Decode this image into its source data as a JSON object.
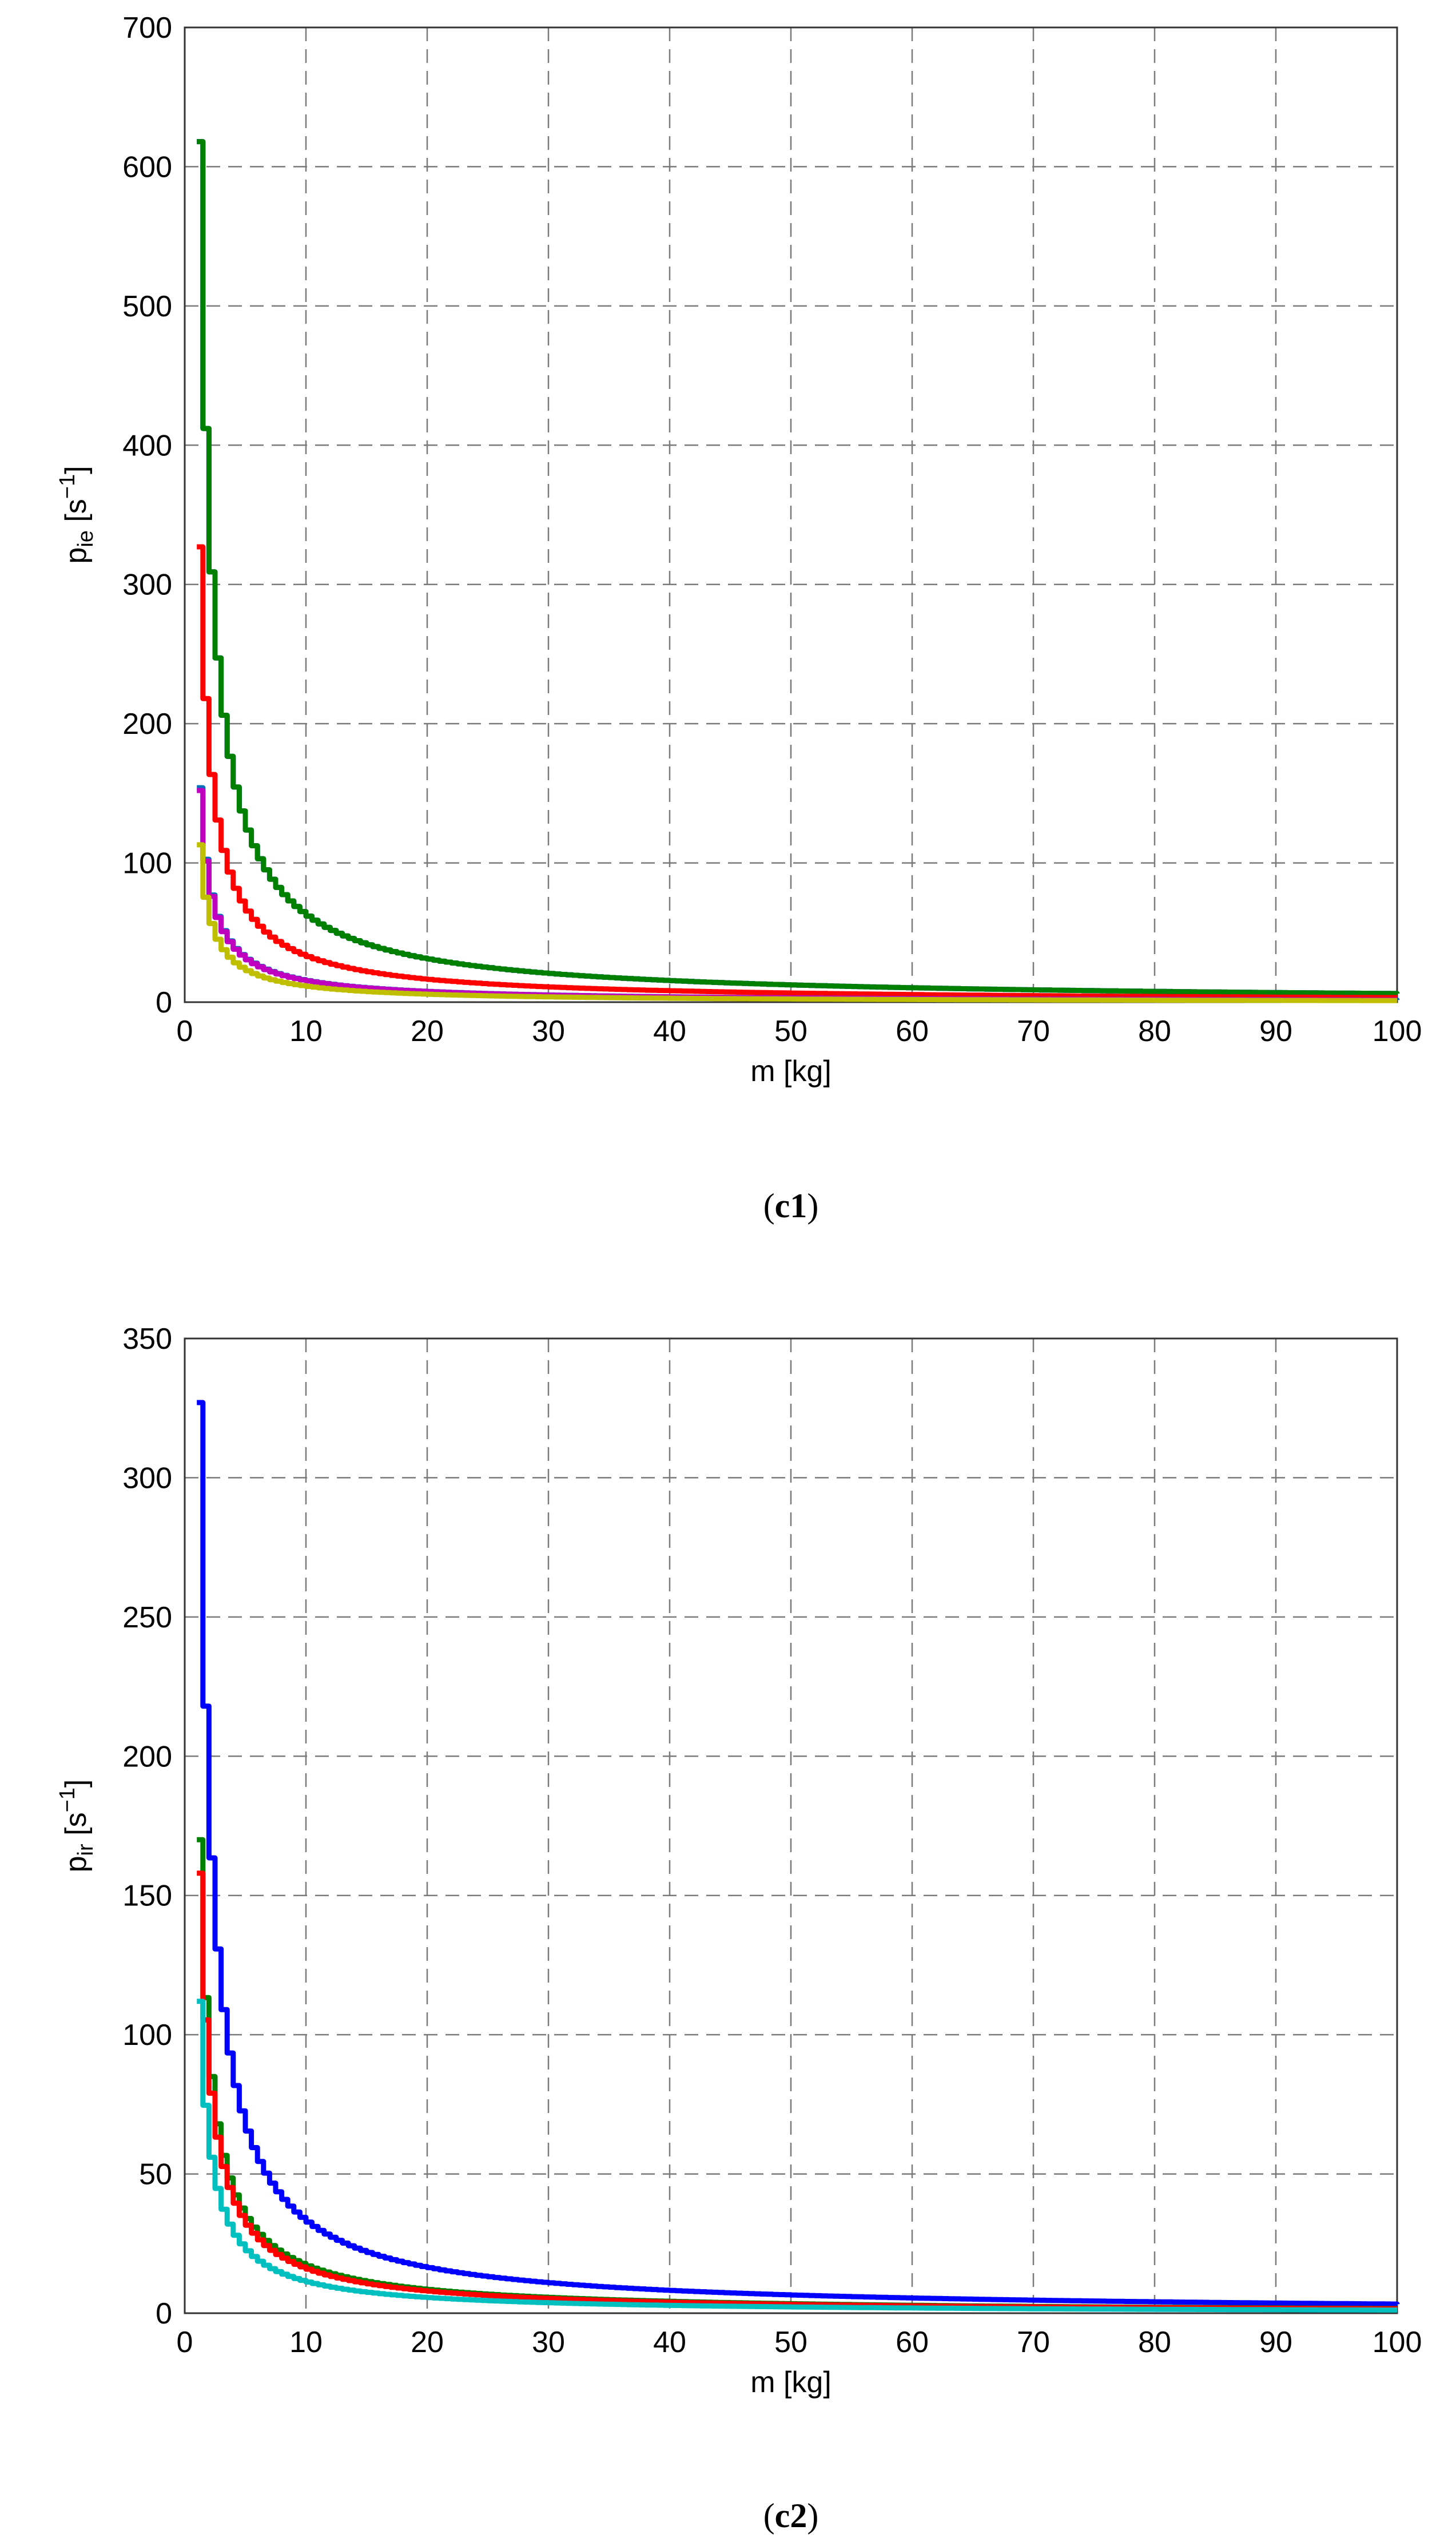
{
  "chart_data": [
    {
      "type": "line",
      "caption_letter": "c",
      "caption_number": "1",
      "xlabel": "m [kg]",
      "ylabel_main": "p",
      "ylabel_sub": "ie",
      "ylabel_unit_open": " [s",
      "ylabel_unit_exp": "−1",
      "ylabel_unit_close": "]",
      "xlim": [
        0,
        100
      ],
      "ylim": [
        0,
        700
      ],
      "xticks": [
        0,
        10,
        20,
        30,
        40,
        50,
        60,
        70,
        80,
        90,
        100
      ],
      "yticks": [
        0,
        100,
        200,
        300,
        400,
        500,
        600,
        700
      ],
      "grid": true,
      "x_start": 1,
      "series": [
        {
          "color": "#0000ff",
          "k": 618
        },
        {
          "color": "#008000",
          "k": 618
        },
        {
          "color": "#ff0000",
          "k": 327
        },
        {
          "color": "#0072bd",
          "k": 154
        },
        {
          "color": "#bf00bf",
          "k": 152
        },
        {
          "color": "#bfbf00",
          "k": 113
        }
      ]
    },
    {
      "type": "line",
      "caption_letter": "c",
      "caption_number": "2",
      "xlabel": "m [kg]",
      "ylabel_main": "p",
      "ylabel_sub": "ir",
      "ylabel_unit_open": " [s",
      "ylabel_unit_exp": "−1",
      "ylabel_unit_close": "]",
      "xlim": [
        0,
        100
      ],
      "ylim": [
        0,
        350
      ],
      "xticks": [
        0,
        10,
        20,
        30,
        40,
        50,
        60,
        70,
        80,
        90,
        100
      ],
      "yticks": [
        0,
        50,
        100,
        150,
        200,
        250,
        300,
        350
      ],
      "grid": true,
      "x_start": 1,
      "series": [
        {
          "color": "#0000ff",
          "k": 327
        },
        {
          "color": "#008000",
          "k": 170
        },
        {
          "color": "#ff0000",
          "k": 158
        },
        {
          "color": "#00bfbf",
          "k": 112
        }
      ]
    }
  ]
}
